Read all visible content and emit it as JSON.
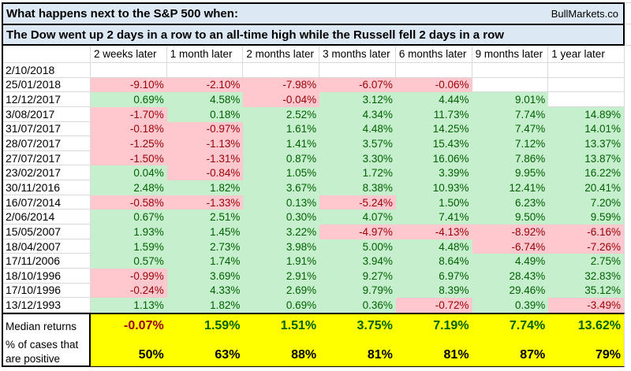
{
  "title": {
    "line1": "What happens next to the S&P 500 when:",
    "brand": "BullMarkets.co",
    "line2": "The Dow went up 2 days in a row to an all-time high while the Russell fell 2 days in a row"
  },
  "table": {
    "column_headers": [
      "2 weeks later",
      "1 month later",
      "2 months later",
      "3 months later",
      "6 months later",
      "9 months later",
      "1 year later"
    ],
    "rows": [
      {
        "date": "2/10/2018",
        "values": [
          "",
          "",
          "",
          "",
          "",
          "",
          ""
        ]
      },
      {
        "date": "25/01/2018",
        "values": [
          "-9.10%",
          "-2.10%",
          "-7.98%",
          "-6.07%",
          "-0.06%",
          "",
          ""
        ]
      },
      {
        "date": "12/12/2017",
        "values": [
          "0.69%",
          "4.58%",
          "-0.04%",
          "3.12%",
          "4.44%",
          "9.01%",
          ""
        ]
      },
      {
        "date": "3/08/2017",
        "values": [
          "-1.70%",
          "0.18%",
          "2.52%",
          "4.34%",
          "11.73%",
          "7.74%",
          "14.89%"
        ]
      },
      {
        "date": "31/07/2017",
        "values": [
          "-0.18%",
          "-0.97%",
          "1.61%",
          "4.48%",
          "14.25%",
          "7.47%",
          "14.01%"
        ]
      },
      {
        "date": "28/07/2017",
        "values": [
          "-1.25%",
          "-1.13%",
          "1.41%",
          "3.57%",
          "15.43%",
          "7.12%",
          "13.37%"
        ]
      },
      {
        "date": "27/07/2017",
        "values": [
          "-1.50%",
          "-1.31%",
          "0.87%",
          "3.30%",
          "16.06%",
          "7.86%",
          "13.87%"
        ]
      },
      {
        "date": "23/02/2017",
        "values": [
          "0.04%",
          "-0.84%",
          "1.05%",
          "1.72%",
          "3.39%",
          "9.95%",
          "16.22%"
        ]
      },
      {
        "date": "30/11/2016",
        "values": [
          "2.48%",
          "1.82%",
          "3.67%",
          "8.38%",
          "10.93%",
          "12.41%",
          "20.41%"
        ]
      },
      {
        "date": "16/07/2014",
        "values": [
          "-0.58%",
          "-1.33%",
          "0.13%",
          "-5.24%",
          "1.50%",
          "6.23%",
          "7.20%"
        ]
      },
      {
        "date": "2/06/2014",
        "values": [
          "0.67%",
          "2.51%",
          "0.30%",
          "4.07%",
          "7.41%",
          "9.50%",
          "9.59%"
        ]
      },
      {
        "date": "15/05/2007",
        "values": [
          "1.93%",
          "1.45%",
          "3.22%",
          "-4.97%",
          "-4.13%",
          "-8.92%",
          "-6.16%"
        ]
      },
      {
        "date": "18/04/2007",
        "values": [
          "1.59%",
          "2.73%",
          "3.98%",
          "5.00%",
          "4.48%",
          "-6.74%",
          "-7.26%"
        ]
      },
      {
        "date": "17/11/2006",
        "values": [
          "0.57%",
          "1.74%",
          "1.91%",
          "3.94%",
          "8.64%",
          "4.49%",
          "2.75%"
        ]
      },
      {
        "date": "18/10/1996",
        "values": [
          "-0.99%",
          "3.69%",
          "2.91%",
          "9.27%",
          "6.97%",
          "28.43%",
          "32.83%"
        ]
      },
      {
        "date": "17/10/1996",
        "values": [
          "-0.24%",
          "4.33%",
          "2.69%",
          "9.79%",
          "8.39%",
          "29.46%",
          "35.12%"
        ]
      },
      {
        "date": "13/12/1993",
        "values": [
          "1.13%",
          "1.82%",
          "0.69%",
          "0.36%",
          "-0.72%",
          "0.39%",
          "-3.49%"
        ]
      }
    ],
    "median": {
      "label": "Median returns",
      "values": [
        "-0.07%",
        "1.59%",
        "1.51%",
        "3.75%",
        "7.19%",
        "7.74%",
        "13.62%"
      ]
    },
    "pct_positive": {
      "label_line1": "% of cases that",
      "label_line2": "are positive",
      "values": [
        "50%",
        "63%",
        "88%",
        "81%",
        "81%",
        "87%",
        "79%"
      ]
    }
  },
  "colors": {
    "positive_fill": "#C6EFCE",
    "positive_text": "#006100",
    "negative_fill": "#FFC7CE",
    "negative_text": "#9C0006",
    "summary_fill": "#FFFF00",
    "title_fill": "#DCE9F5",
    "gridline": "#D9D9D9"
  }
}
